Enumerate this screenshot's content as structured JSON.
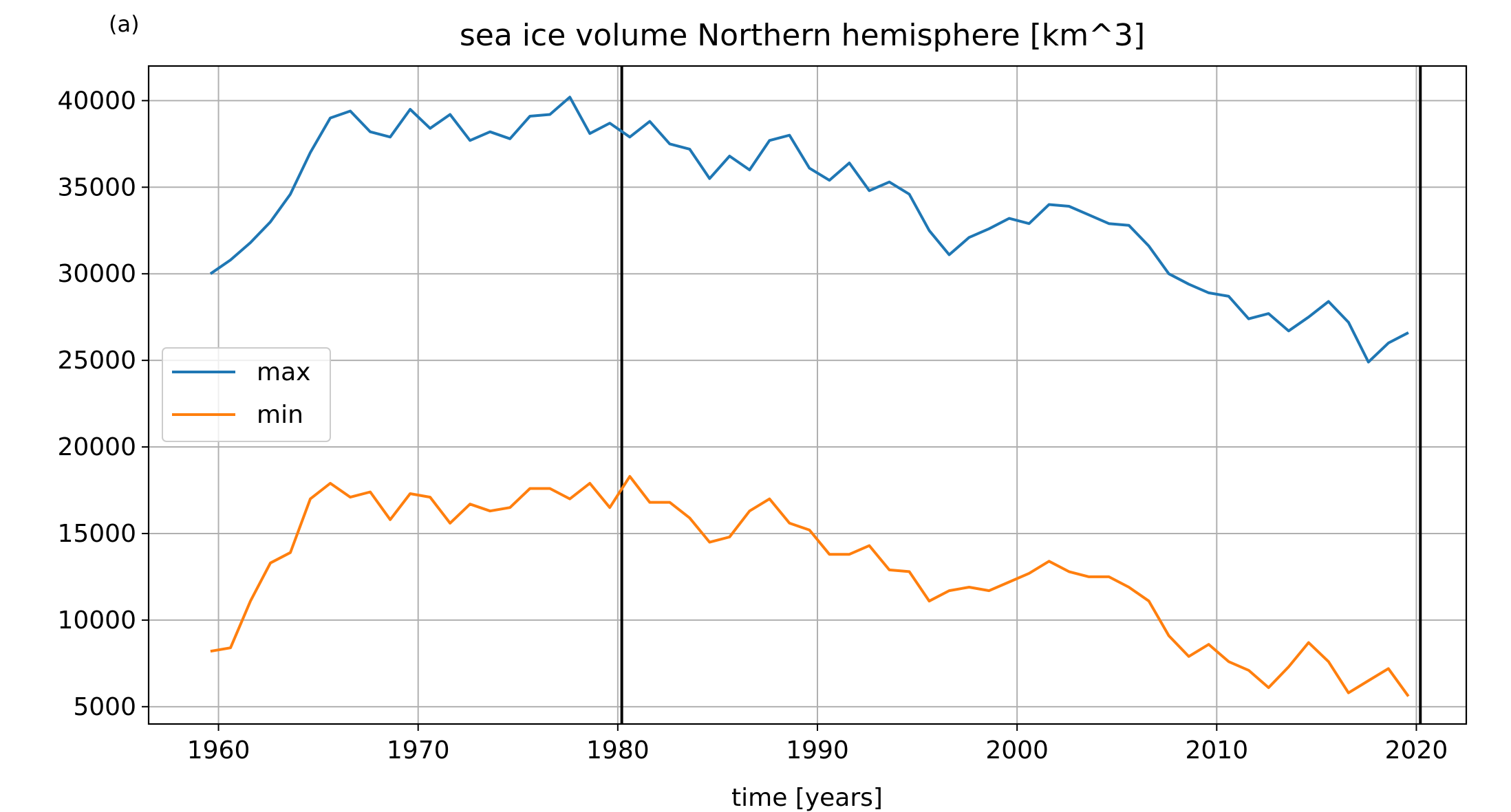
{
  "panel_label": "(a)",
  "chart_data": {
    "type": "line",
    "title": "sea ice volume Northern hemisphere [km^3]",
    "xlabel": "time [years]",
    "ylabel": "",
    "xlim": [
      1956.5,
      2022.5
    ],
    "ylim": [
      4000,
      42000
    ],
    "xticks": [
      1960,
      1970,
      1980,
      1990,
      2000,
      2010,
      2020
    ],
    "yticks": [
      5000,
      10000,
      15000,
      20000,
      25000,
      30000,
      35000,
      40000
    ],
    "grid": true,
    "legend_position": "center-left",
    "vlines": [
      1980.2,
      2020.2
    ],
    "x": [
      1959.6,
      1960.6,
      1961.6,
      1962.6,
      1963.6,
      1964.6,
      1965.6,
      1966.6,
      1967.6,
      1968.6,
      1969.6,
      1970.6,
      1971.6,
      1972.6,
      1973.6,
      1974.6,
      1975.6,
      1976.6,
      1977.6,
      1978.6,
      1979.6,
      1980.6,
      1981.6,
      1982.6,
      1983.6,
      1984.6,
      1985.6,
      1986.6,
      1987.6,
      1988.6,
      1989.6,
      1990.6,
      1991.6,
      1992.6,
      1993.6,
      1994.6,
      1995.6,
      1996.6,
      1997.6,
      1998.6,
      1999.6,
      2000.6,
      2001.6,
      2002.6,
      2003.6,
      2004.6,
      2005.6,
      2006.6,
      2007.6,
      2008.6,
      2009.6,
      2010.6,
      2011.6,
      2012.6,
      2013.6,
      2014.6,
      2015.6,
      2016.6,
      2017.6,
      2018.6,
      2019.6
    ],
    "series": [
      {
        "name": "max",
        "color": "#1f77b4",
        "values": [
          30000,
          30800,
          31800,
          33000,
          34600,
          37000,
          39000,
          39400,
          38200,
          37900,
          39500,
          38400,
          39200,
          37700,
          38200,
          37800,
          39100,
          39200,
          40200,
          38100,
          38700,
          37900,
          38800,
          37500,
          37200,
          35500,
          36800,
          36000,
          37700,
          38000,
          36100,
          35400,
          36400,
          34800,
          35300,
          34600,
          32500,
          31100,
          32100,
          32600,
          33200,
          32900,
          34000,
          33900,
          33400,
          32900,
          32800,
          31600,
          30000,
          29400,
          28900,
          28700,
          27400,
          27700,
          26700,
          27500,
          28400,
          27200,
          24900,
          26000,
          26600
        ]
      },
      {
        "name": "min",
        "color": "#ff7f0e",
        "values": [
          8200,
          8400,
          11100,
          13300,
          13900,
          17000,
          17900,
          17100,
          17400,
          15800,
          17300,
          17100,
          15600,
          16700,
          16300,
          16500,
          17600,
          17600,
          17000,
          17900,
          16500,
          18300,
          16800,
          16800,
          15900,
          14500,
          14800,
          16300,
          17000,
          15600,
          15200,
          13800,
          13800,
          14300,
          12900,
          12800,
          11100,
          11700,
          11900,
          11700,
          12200,
          12700,
          13400,
          12800,
          12500,
          12500,
          11900,
          11100,
          9100,
          7900,
          8600,
          7600,
          7100,
          6100,
          7300,
          8700,
          7600,
          5800,
          6500,
          7200,
          5600
        ]
      }
    ]
  }
}
